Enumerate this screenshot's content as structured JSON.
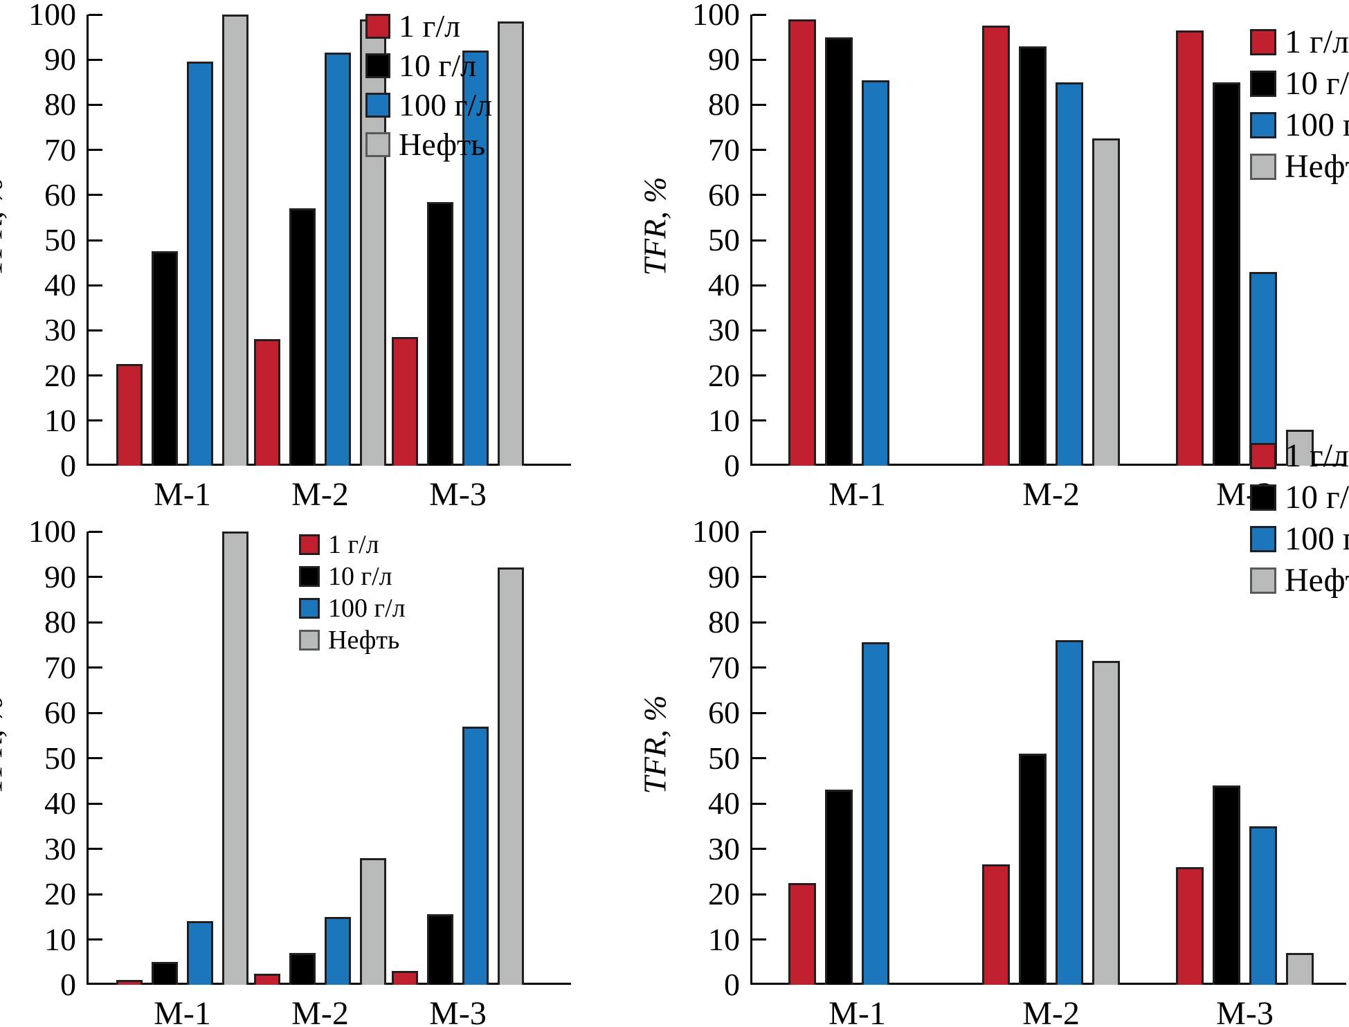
{
  "figure": {
    "ylabel": "TFR, %",
    "categories": [
      "М-1",
      "М-2",
      "М-3"
    ],
    "legend_labels": [
      "1 г/л",
      "10 г/л",
      "100 г/л",
      "Нефть"
    ],
    "colors": {
      "red": "#c1202e",
      "black": "#000000",
      "blue": "#1c76bc",
      "gray": "#b7bab8",
      "bar_border": "#231f20",
      "gray_swatch_border": "#58595b"
    }
  },
  "chart_data": [
    {
      "id": "a",
      "position": "top-left",
      "type": "bar",
      "title": "",
      "ylabel": "TFR, %",
      "ylim": [
        0,
        100
      ],
      "ytick_step": 10,
      "grid": false,
      "legend_position": "inside-top-right-of-center",
      "categories": [
        "М-1",
        "М-2",
        "М-3"
      ],
      "series": [
        {
          "key": "1gl",
          "name": "1 г/л",
          "color_key": "red",
          "values": [
            22.5,
            28,
            28.5
          ]
        },
        {
          "key": "10gl",
          "name": "10 г/л",
          "color_key": "black",
          "values": [
            47.5,
            57,
            58.5
          ]
        },
        {
          "key": "100gl",
          "name": "100 г/л",
          "color_key": "blue",
          "values": [
            89.5,
            91.5,
            92
          ]
        },
        {
          "key": "neft",
          "name": "Нефть",
          "color_key": "gray",
          "values": [
            100,
            99,
            98.5
          ]
        }
      ]
    },
    {
      "id": "b",
      "position": "top-right",
      "type": "bar",
      "title": "",
      "ylabel": "TFR, %",
      "ylim": [
        0,
        100
      ],
      "ytick_step": 10,
      "grid": false,
      "legend_position": "inside-top-right",
      "categories": [
        "М-1",
        "М-2",
        "М-3"
      ],
      "series": [
        {
          "key": "1gl",
          "name": "1 г/л",
          "color_key": "red",
          "values": [
            99,
            97.5,
            96.5
          ]
        },
        {
          "key": "10gl",
          "name": "10 г/л",
          "color_key": "black",
          "values": [
            95,
            93,
            85
          ]
        },
        {
          "key": "100gl",
          "name": "100 г/л",
          "color_key": "blue",
          "values": [
            85.5,
            85,
            43
          ]
        },
        {
          "key": "neft",
          "name": "Нефть",
          "color_key": "gray",
          "values": [
            null,
            72.5,
            8
          ]
        }
      ]
    },
    {
      "id": "c",
      "position": "bottom-left",
      "type": "bar",
      "title": "",
      "ylabel": "TFR, %",
      "ylim": [
        0,
        100
      ],
      "ytick_step": 10,
      "grid": false,
      "legend_position": "inside-top-right-of-center",
      "categories": [
        "М-1",
        "М-2",
        "М-3"
      ],
      "series": [
        {
          "key": "1gl",
          "name": "1 г/л",
          "color_key": "red",
          "values": [
            1,
            2.5,
            3
          ]
        },
        {
          "key": "10gl",
          "name": "10 г/л",
          "color_key": "black",
          "values": [
            5,
            7,
            15.5
          ]
        },
        {
          "key": "100gl",
          "name": "100 г/л",
          "color_key": "blue",
          "values": [
            14,
            15,
            57
          ]
        },
        {
          "key": "neft",
          "name": "Нефть",
          "color_key": "gray",
          "values": [
            100,
            28,
            92
          ]
        }
      ]
    },
    {
      "id": "d",
      "position": "bottom-right",
      "type": "bar",
      "title": "",
      "ylabel": "TFR, %",
      "ylim": [
        0,
        100
      ],
      "ytick_step": 10,
      "grid": false,
      "legend_position": "inside-top-right",
      "categories": [
        "М-1",
        "М-2",
        "М-3"
      ],
      "series": [
        {
          "key": "1gl",
          "name": "1 г/л",
          "color_key": "red",
          "values": [
            22.5,
            26.5,
            26
          ]
        },
        {
          "key": "10gl",
          "name": "10 г/л",
          "color_key": "black",
          "values": [
            43,
            51,
            44
          ]
        },
        {
          "key": "100gl",
          "name": "100 г/л",
          "color_key": "blue",
          "values": [
            75.5,
            76,
            35
          ]
        },
        {
          "key": "neft",
          "name": "Нефть",
          "color_key": "gray",
          "values": [
            null,
            71.5,
            7
          ]
        }
      ]
    }
  ]
}
